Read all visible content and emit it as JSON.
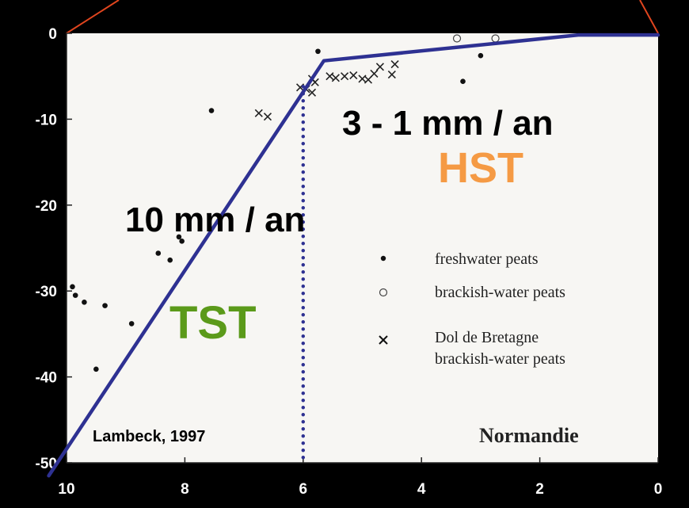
{
  "chart_data": {
    "type": "scatter",
    "title": "",
    "xlabel": "",
    "ylabel": "",
    "xlim": [
      10,
      0
    ],
    "ylim": [
      -50,
      0
    ],
    "x_ticks": [
      "10",
      "8",
      "6",
      "4",
      "2",
      "0"
    ],
    "y_ticks": [
      "0",
      "-10",
      "-20",
      "-30",
      "-40",
      "-50"
    ],
    "grid": false,
    "legend_position": "middle-right",
    "series": [
      {
        "name": "freshwater peats",
        "marker": "dot",
        "points": [
          [
            9.9,
            -29.5
          ],
          [
            9.85,
            -30.5
          ],
          [
            9.7,
            -31.3
          ],
          [
            9.35,
            -31.7
          ],
          [
            8.9,
            -33.8
          ],
          [
            9.5,
            -39.1
          ],
          [
            8.45,
            -25.6
          ],
          [
            8.25,
            -26.4
          ],
          [
            8.1,
            -23.7
          ],
          [
            8.05,
            -24.2
          ],
          [
            7.55,
            -9.0
          ],
          [
            5.75,
            -2.1
          ],
          [
            3.3,
            -5.6
          ],
          [
            3.0,
            -2.6
          ]
        ]
      },
      {
        "name": "brackish-water peats",
        "marker": "circle",
        "points": [
          [
            3.4,
            -0.6
          ],
          [
            2.75,
            -0.6
          ]
        ]
      },
      {
        "name": "Dol de Bretagne brackish-water peats",
        "marker": "cross",
        "points": [
          [
            6.05,
            -6.3
          ],
          [
            5.95,
            -6.5
          ],
          [
            5.85,
            -5.3
          ],
          [
            5.8,
            -5.7
          ],
          [
            5.85,
            -6.9
          ],
          [
            5.55,
            -5.0
          ],
          [
            5.45,
            -5.2
          ],
          [
            5.3,
            -5.0
          ],
          [
            5.15,
            -4.9
          ],
          [
            5.0,
            -5.3
          ],
          [
            4.9,
            -5.4
          ],
          [
            4.8,
            -4.7
          ],
          [
            4.7,
            -3.9
          ],
          [
            4.5,
            -4.8
          ],
          [
            4.45,
            -3.6
          ],
          [
            6.75,
            -9.3
          ],
          [
            6.6,
            -9.7
          ]
        ]
      }
    ],
    "trend_line": {
      "color": "#2e3192",
      "points": [
        [
          10.3,
          -51.5
        ],
        [
          5.65,
          -3.2
        ],
        [
          1.35,
          -0.2
        ],
        [
          0,
          -0.2
        ]
      ]
    },
    "boundary_line": {
      "color": "#2e3192",
      "x": 6,
      "y_range": [
        -50,
        -6.2
      ]
    }
  },
  "annotations": {
    "rate_hst": "3 - 1 mm / an",
    "hst": "HST",
    "rate_tst": "10 mm / an",
    "tst": "TST",
    "region": "Normandie",
    "citation": "Lambeck, 1997"
  },
  "colors": {
    "background": "#000000",
    "plot_area": "#f7f6f3",
    "axis_text": "#ffffff",
    "tst": "#5b9a1a",
    "hst": "#f59a44",
    "line": "#2e3192",
    "frame_accent": "#e0451e"
  }
}
